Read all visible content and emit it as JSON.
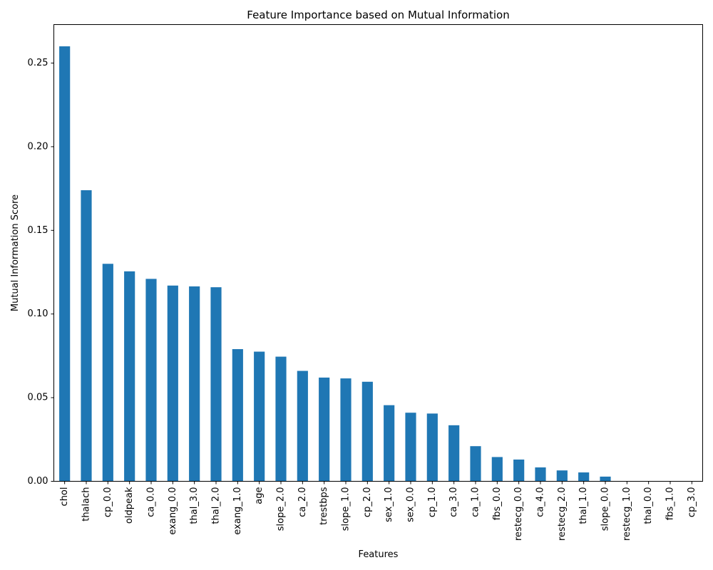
{
  "chart_data": {
    "type": "bar",
    "title": "Feature Importance based on Mutual Information",
    "xlabel": "Features",
    "ylabel": "Mutual Information Score",
    "ylim": [
      0,
      0.273
    ],
    "yticks": [
      "0.00",
      "0.05",
      "0.10",
      "0.15",
      "0.20",
      "0.25"
    ],
    "categories": [
      "chol",
      "thalach",
      "cp_0.0",
      "oldpeak",
      "ca_0.0",
      "exang_0.0",
      "thal_3.0",
      "thal_2.0",
      "exang_1.0",
      "age",
      "slope_2.0",
      "ca_2.0",
      "trestbps",
      "slope_1.0",
      "cp_2.0",
      "sex_1.0",
      "sex_0.0",
      "cp_1.0",
      "ca_3.0",
      "ca_1.0",
      "fbs_0.0",
      "restecg_0.0",
      "ca_4.0",
      "restecg_2.0",
      "thal_1.0",
      "slope_0.0",
      "restecg_1.0",
      "thal_0.0",
      "fbs_1.0",
      "cp_3.0"
    ],
    "values": [
      0.26,
      0.174,
      0.13,
      0.1255,
      0.121,
      0.117,
      0.1165,
      0.116,
      0.079,
      0.0775,
      0.0745,
      0.066,
      0.062,
      0.0615,
      0.0595,
      0.0455,
      0.041,
      0.0405,
      0.0335,
      0.021,
      0.0145,
      0.013,
      0.0083,
      0.0065,
      0.0053,
      0.0028,
      0.0,
      0.0,
      0.0,
      0.0
    ],
    "bar_color": "#1f77b4",
    "grid": false,
    "legend": "none"
  }
}
